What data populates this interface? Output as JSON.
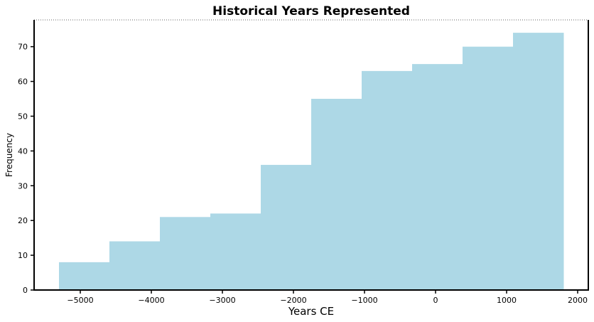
{
  "chart_data": {
    "type": "bar",
    "title": "Historical Years Represented",
    "xlabel": "Years CE",
    "ylabel": "Frequency",
    "xlim": [
      -5650,
      2150
    ],
    "ylim": [
      0,
      77.7
    ],
    "x_ticks": [
      -5000,
      -4000,
      -3000,
      -2000,
      -1000,
      0,
      1000,
      2000
    ],
    "x_tick_labels": [
      "−5000",
      "−4000",
      "−3000",
      "−2000",
      "−1000",
      "0",
      "1000",
      "2000"
    ],
    "y_ticks": [
      0,
      10,
      20,
      30,
      40,
      50,
      60,
      70
    ],
    "y_tick_labels": [
      "0",
      "10",
      "20",
      "30",
      "40",
      "50",
      "60",
      "70"
    ],
    "bin_edges": [
      -5300,
      -4590,
      -3880,
      -3170,
      -2460,
      -1750,
      -1040,
      -330,
      380,
      1090,
      1800
    ],
    "values": [
      8,
      14,
      21,
      22,
      36,
      55,
      63,
      65,
      70,
      74
    ],
    "grid": false,
    "bar_color": "#add8e6",
    "axis_color": "#000000"
  }
}
